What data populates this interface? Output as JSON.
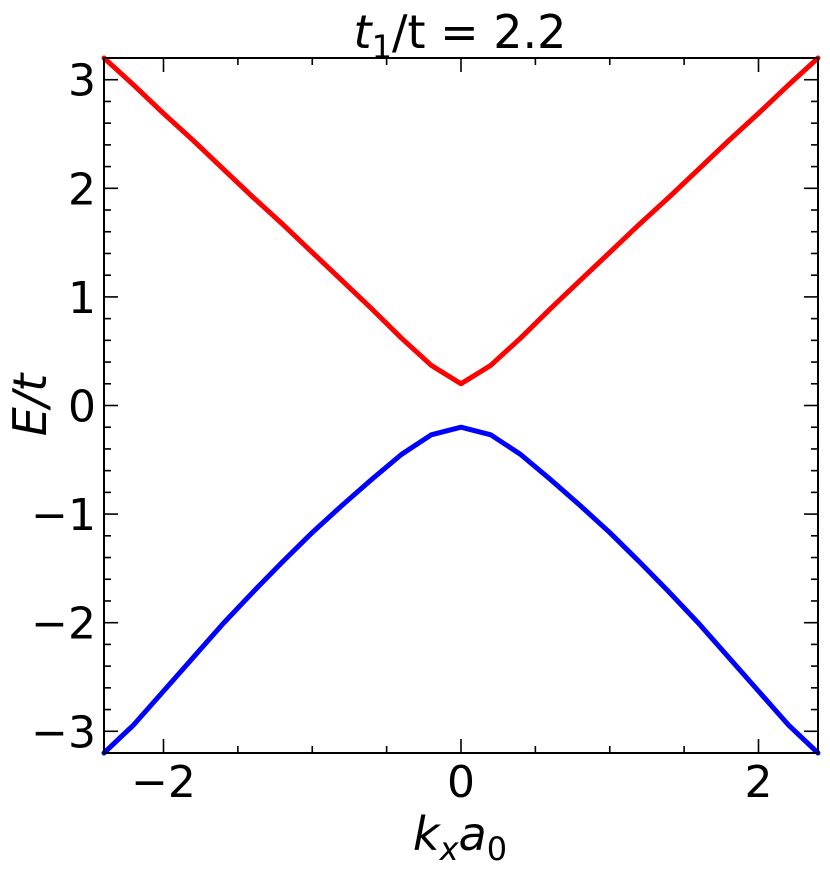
{
  "chart_data": {
    "type": "line",
    "title": {
      "var": "t",
      "sub": "1",
      "rest": "/t = 2.2"
    },
    "xlabel": {
      "var1": "k",
      "sub1": "x",
      "var2": "a",
      "sub2": "0"
    },
    "ylabel": "E/t",
    "xlim": [
      -2.4,
      2.4
    ],
    "ylim": [
      -3.2,
      3.2
    ],
    "xticks": [
      {
        "value": -2,
        "label": "−2"
      },
      {
        "value": 0,
        "label": "0"
      },
      {
        "value": 2,
        "label": "2"
      }
    ],
    "yticks": [
      {
        "value": -3,
        "label": "−3"
      },
      {
        "value": -2,
        "label": "−2"
      },
      {
        "value": -1,
        "label": "−1"
      },
      {
        "value": 0,
        "label": "0"
      },
      {
        "value": 1,
        "label": "1"
      },
      {
        "value": 2,
        "label": "2"
      },
      {
        "value": 3,
        "label": "3"
      }
    ],
    "x_minor_step": 0.5,
    "y_minor_step": 0.2,
    "grid": false,
    "series": [
      {
        "color": "#ff0000",
        "x": [
          -2.4,
          -2.2,
          -2.0,
          -1.8,
          -1.6,
          -1.4,
          -1.2,
          -1.0,
          -0.8,
          -0.6,
          -0.4,
          -0.2,
          0.0,
          0.2,
          0.4,
          0.6,
          0.8,
          1.0,
          1.2,
          1.4,
          1.6,
          1.8,
          2.0,
          2.2,
          2.4
        ],
        "y": [
          3.2,
          2.95,
          2.69,
          2.44,
          2.18,
          1.92,
          1.67,
          1.41,
          1.15,
          0.89,
          0.62,
          0.37,
          0.2,
          0.37,
          0.62,
          0.89,
          1.15,
          1.41,
          1.67,
          1.92,
          2.18,
          2.44,
          2.69,
          2.95,
          3.2
        ]
      },
      {
        "color": "#0000ff",
        "x": [
          -2.4,
          -2.2,
          -2.0,
          -1.8,
          -1.6,
          -1.4,
          -1.2,
          -1.0,
          -0.8,
          -0.6,
          -0.4,
          -0.2,
          0.0,
          0.2,
          0.4,
          0.6,
          0.8,
          1.0,
          1.2,
          1.4,
          1.6,
          1.8,
          2.0,
          2.2,
          2.4
        ],
        "y": [
          -3.2,
          -2.94,
          -2.63,
          -2.32,
          -2.01,
          -1.72,
          -1.44,
          -1.17,
          -0.92,
          -0.68,
          -0.45,
          -0.27,
          -0.2,
          -0.27,
          -0.45,
          -0.68,
          -0.92,
          -1.17,
          -1.44,
          -1.72,
          -2.01,
          -2.32,
          -2.63,
          -2.94,
          -3.2
        ]
      }
    ]
  }
}
